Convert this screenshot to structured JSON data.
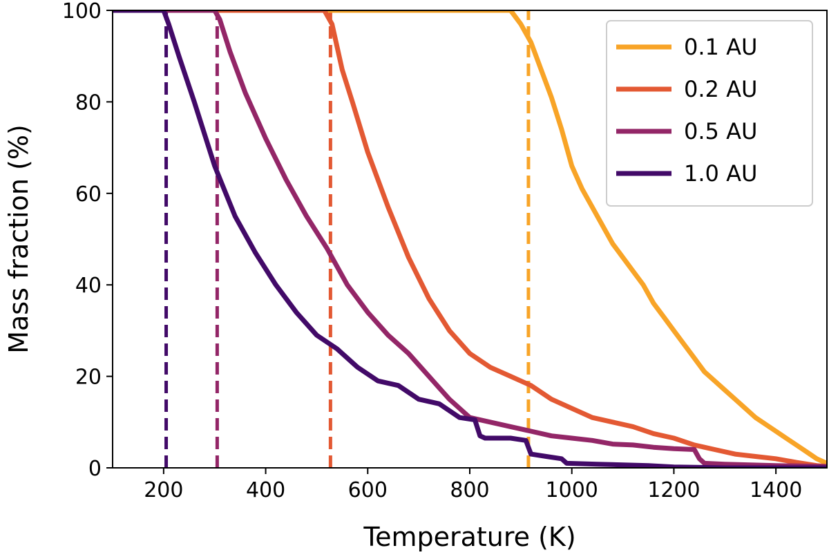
{
  "chart_data": {
    "type": "line",
    "title": "",
    "xlabel": "Temperature (K)",
    "ylabel": "Mass fraction (%)",
    "xlim": [
      100,
      1500
    ],
    "ylim": [
      0,
      100
    ],
    "xticks": [
      200,
      400,
      600,
      800,
      1000,
      1200,
      1400
    ],
    "yticks": [
      0,
      20,
      40,
      60,
      80,
      100
    ],
    "grid": false,
    "legend": "top-right",
    "series": [
      {
        "name": "0.1 AU",
        "color": "#f8a427",
        "threshold": 915,
        "x": [
          100,
          880,
          900,
          920,
          940,
          960,
          980,
          1000,
          1020,
          1040,
          1060,
          1080,
          1100,
          1120,
          1140,
          1160,
          1180,
          1200,
          1220,
          1240,
          1260,
          1280,
          1300,
          1320,
          1340,
          1360,
          1380,
          1400,
          1420,
          1440,
          1460,
          1480,
          1500
        ],
        "y": [
          100,
          100,
          97,
          93,
          87,
          81,
          74,
          66,
          61,
          57,
          53,
          49,
          46,
          43,
          40,
          36,
          33,
          30,
          27,
          24,
          21,
          19,
          17,
          15,
          13,
          11,
          9.5,
          8,
          6.5,
          5,
          3.5,
          2,
          1
        ]
      },
      {
        "name": "0.2 AU",
        "color": "#e35933",
        "threshold": 527,
        "x": [
          100,
          515,
          530,
          550,
          570,
          600,
          640,
          680,
          720,
          760,
          800,
          840,
          880,
          920,
          960,
          1000,
          1040,
          1080,
          1120,
          1160,
          1200,
          1240,
          1280,
          1320,
          1360,
          1400,
          1440,
          1480,
          1500
        ],
        "y": [
          100,
          100,
          97,
          87,
          80,
          69,
          57,
          46,
          37,
          30,
          25,
          22,
          20,
          18,
          15,
          13,
          11,
          10,
          9,
          7.5,
          6.5,
          5,
          4,
          3,
          2.5,
          2,
          1.2,
          0.5,
          0.3
        ]
      },
      {
        "name": "0.5 AU",
        "color": "#932667",
        "threshold": 305,
        "x": [
          100,
          300,
          310,
          330,
          360,
          400,
          440,
          480,
          520,
          560,
          600,
          640,
          680,
          720,
          760,
          800,
          840,
          880,
          920,
          960,
          1000,
          1040,
          1080,
          1120,
          1160,
          1200,
          1240,
          1250,
          1260,
          1300,
          1400,
          1500
        ],
        "y": [
          100,
          100,
          98,
          91,
          82,
          72,
          63,
          55,
          48,
          40,
          34,
          29,
          25,
          20,
          15,
          11,
          10,
          9,
          8,
          7,
          6.5,
          6,
          5.2,
          5,
          4.5,
          4.2,
          4,
          2,
          1,
          0.8,
          0.5,
          0.3
        ]
      },
      {
        "name": "1.0 AU",
        "color": "#420a68",
        "threshold": 205,
        "x": [
          100,
          200,
          210,
          230,
          260,
          300,
          340,
          380,
          420,
          460,
          500,
          540,
          580,
          620,
          660,
          700,
          740,
          780,
          810,
          820,
          830,
          880,
          910,
          920,
          950,
          980,
          990,
          1050,
          1150,
          1200,
          1300,
          1400,
          1500
        ],
        "y": [
          100,
          100,
          97,
          90,
          80,
          66,
          55,
          47,
          40,
          34,
          29,
          26,
          22,
          19,
          18,
          15,
          14,
          11,
          10.5,
          7,
          6.5,
          6.5,
          6,
          3,
          2.5,
          2,
          1,
          0.8,
          0.5,
          0.2,
          0,
          0,
          0
        ]
      }
    ]
  }
}
